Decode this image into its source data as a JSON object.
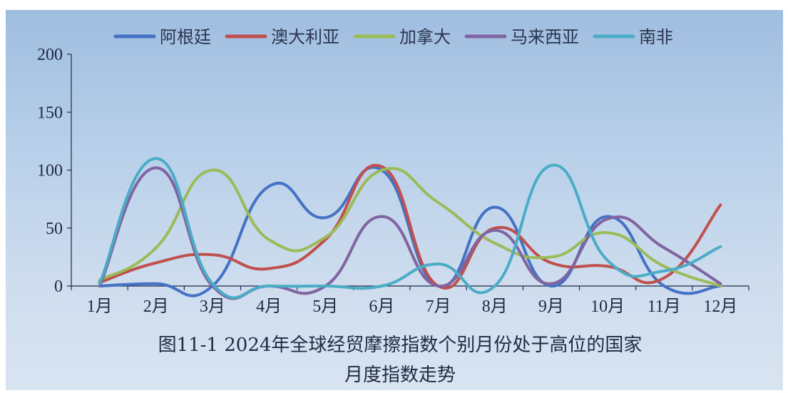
{
  "chart_data": {
    "type": "line",
    "caption": {
      "line1": "图11-1  2024年全球经贸摩擦指数个别月份处于高位的国家",
      "line2": "月度指数走势"
    },
    "categories": [
      "1月",
      "2月",
      "3月",
      "4月",
      "5月",
      "6月",
      "7月",
      "8月",
      "9月",
      "10月",
      "11月",
      "12月"
    ],
    "y_ticks": [
      "0",
      "50",
      "100",
      "150",
      "200"
    ],
    "ylim": [
      0,
      200
    ],
    "legend_position": "top",
    "grid": false,
    "series": [
      {
        "name": "阿根廷",
        "color": "#4472c4",
        "values": [
          0,
          2,
          0,
          86,
          59,
          100,
          0,
          68,
          0,
          60,
          0,
          0
        ]
      },
      {
        "name": "澳大利亚",
        "color": "#c0504d",
        "values": [
          3,
          20,
          27,
          15,
          40,
          103,
          0,
          50,
          20,
          17,
          7,
          70
        ]
      },
      {
        "name": "加拿大",
        "color": "#9bbb59",
        "values": [
          5,
          33,
          100,
          40,
          42,
          100,
          72,
          37,
          25,
          46,
          17,
          0
        ]
      },
      {
        "name": "马来西亚",
        "color": "#8064a2",
        "values": [
          0,
          102,
          0,
          0,
          0,
          60,
          0,
          48,
          2,
          58,
          33,
          2
        ]
      },
      {
        "name": "南非",
        "color": "#4bacc6",
        "values": [
          2,
          110,
          2,
          0,
          0,
          0,
          19,
          0,
          104,
          22,
          13,
          34
        ]
      }
    ]
  }
}
